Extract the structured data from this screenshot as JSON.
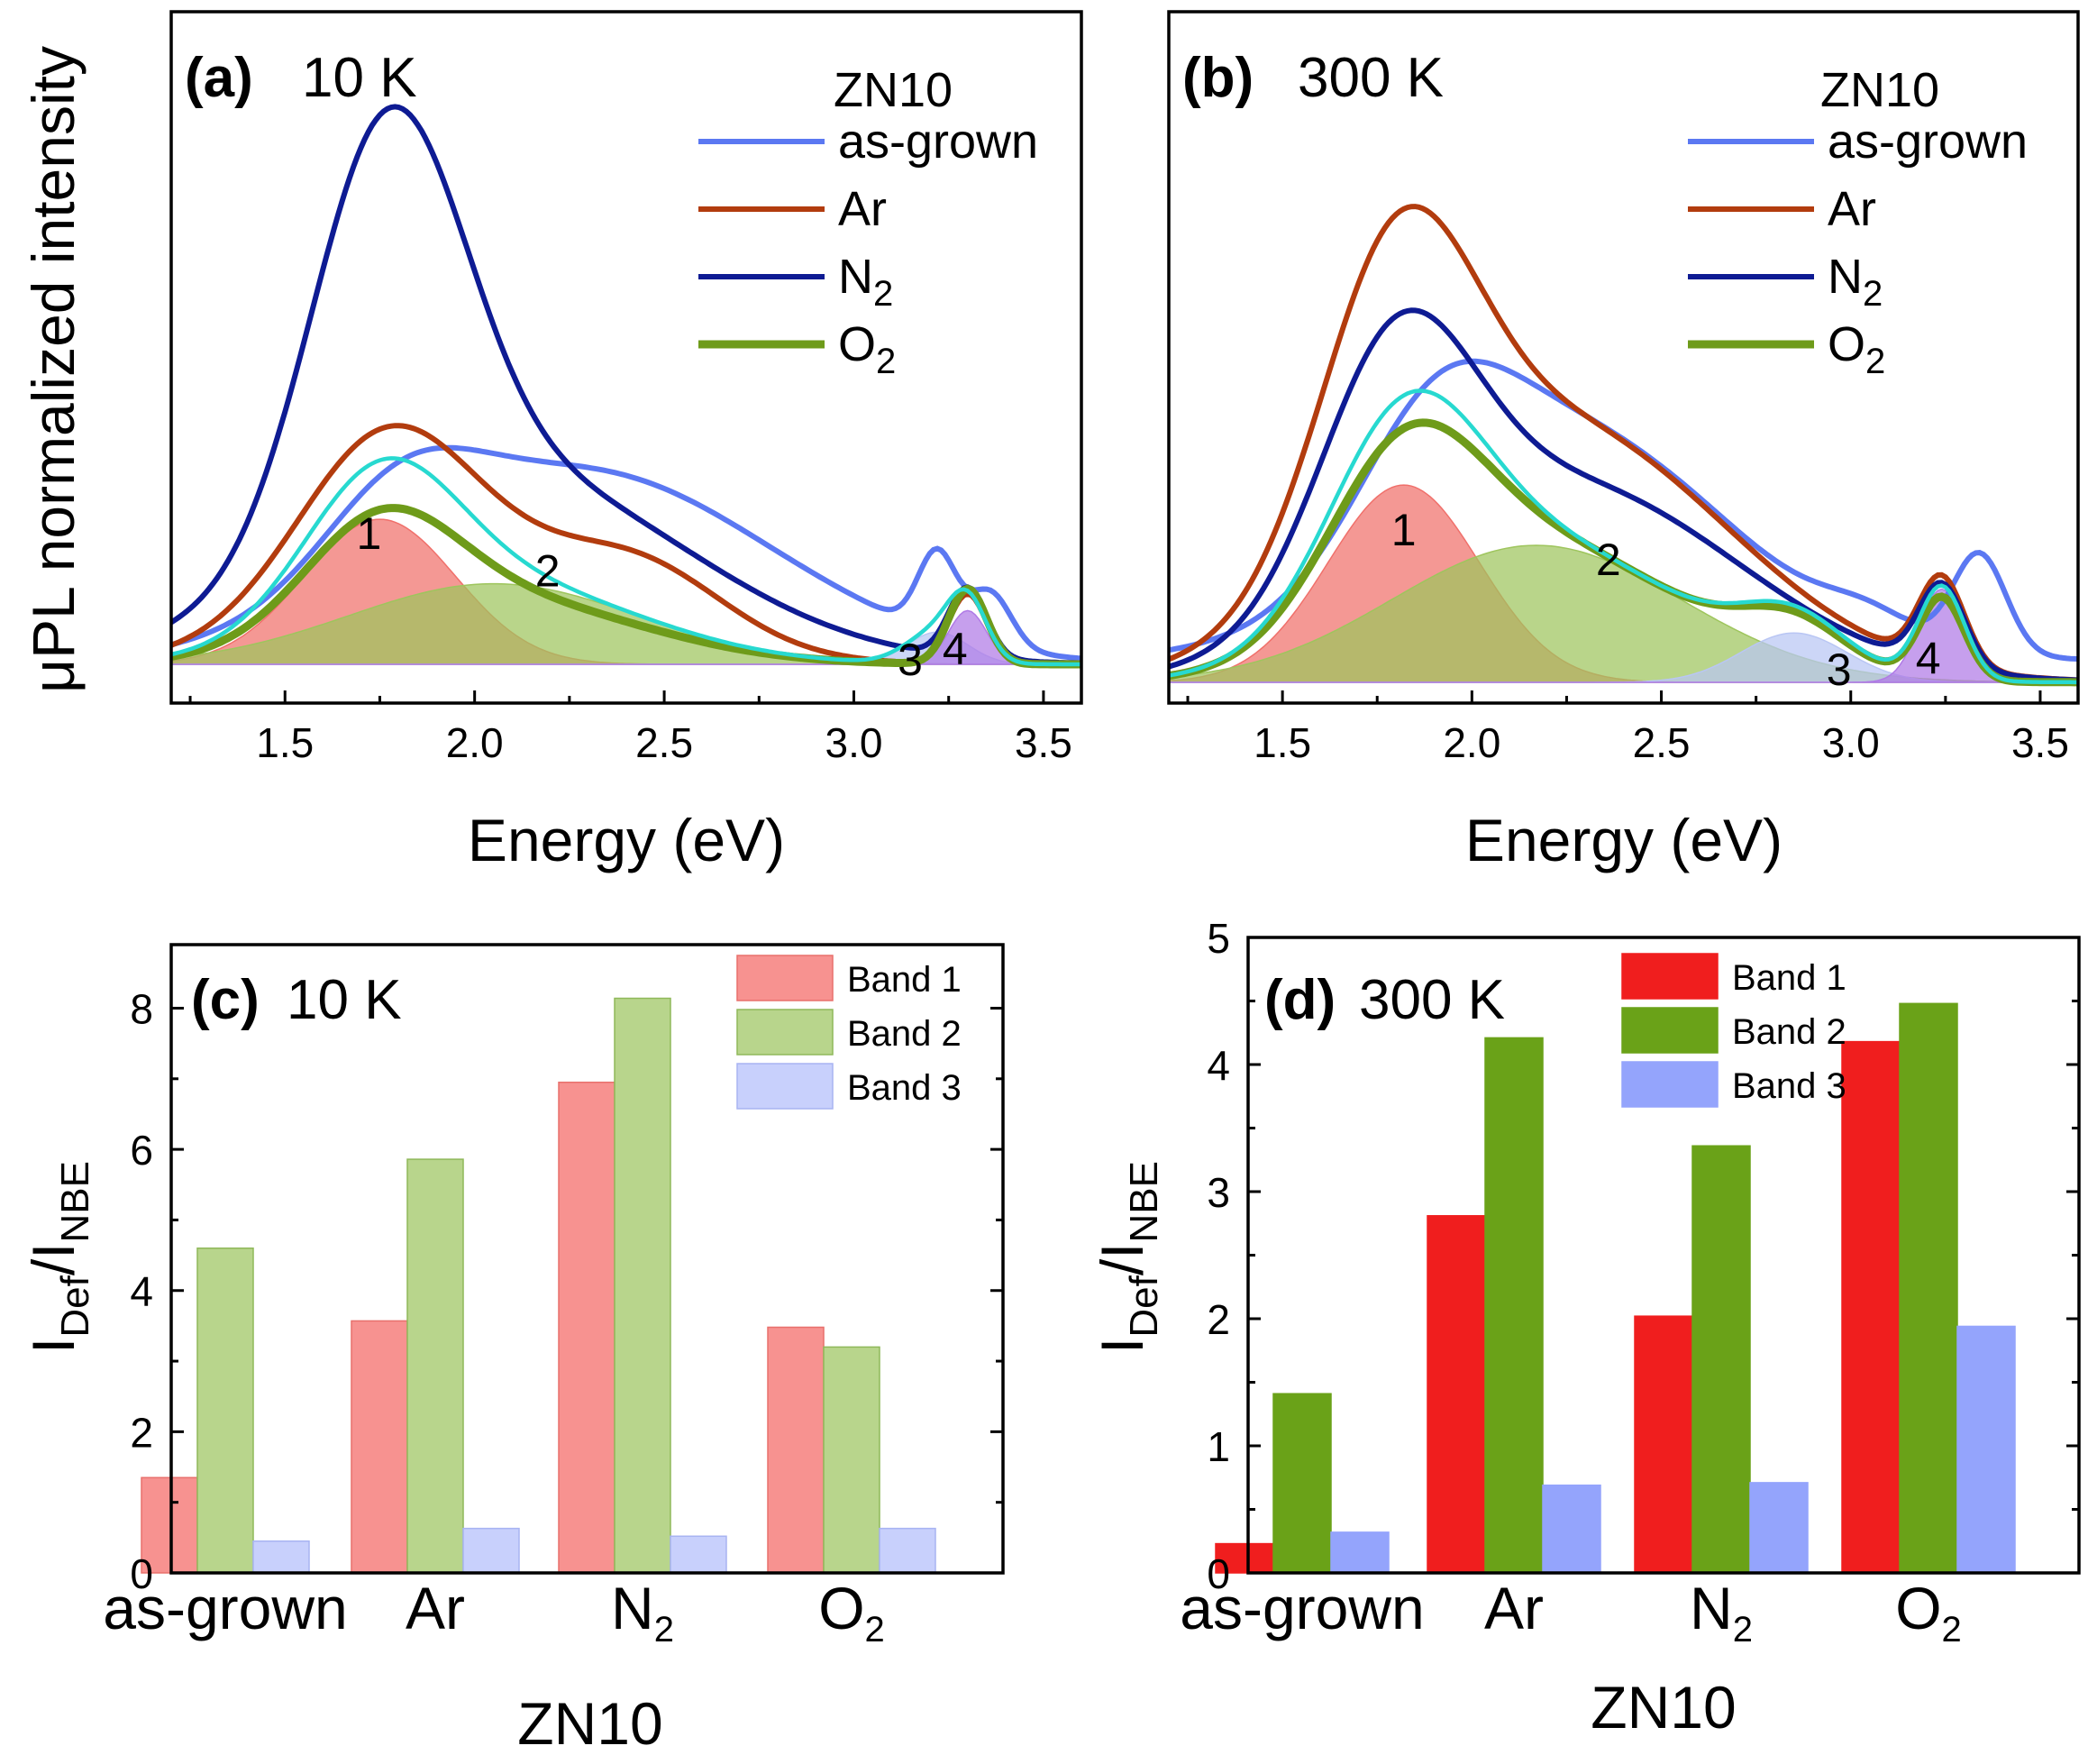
{
  "figure_text": {
    "ylabel_top": "μPL normalized intensity",
    "xlabel_top": "Energy (eV)",
    "ylabel_bottom_main": "I",
    "ylabel_bottom_sub1": "Def",
    "ylabel_bottom_slash": "/I",
    "ylabel_bottom_sub2": "NBE",
    "xlabel_bottom": "ZN10"
  },
  "colors": {
    "as_grown": "#5b78f2",
    "Ar": "#b23c0e",
    "N2": "#0e1b93",
    "O2": "#6e9b1a",
    "fit": "#27d9d0",
    "band1_fill": "#f0706b",
    "band2_fill": "#9ec55d",
    "band3_fill": "#b9c6f4",
    "band4_fill": "#b07ae6",
    "c_band1": "#f79290",
    "c_band2": "#b8d58c",
    "c_band3": "#c8d0fc",
    "d_band1": "#f01e1e",
    "d_band2": "#6aa218",
    "d_band3": "#94a4fc"
  },
  "chart_data": [
    {
      "id": "a",
      "type": "line",
      "panel_label": "(a)",
      "temperature": "10 K",
      "sample": "ZN10",
      "xlabel": "Energy (eV)",
      "ylabel": "μPL normalized intensity",
      "xlim": [
        1.2,
        3.6
      ],
      "ylim": [
        -0.05,
        1.15
      ],
      "xticks": [
        "1.5",
        "2.0",
        "2.5",
        "3.0",
        "3.5"
      ],
      "legend": [
        "as-grown",
        "Ar",
        "N",
        "O"
      ],
      "legend_sub": [
        "",
        "",
        "2",
        "2"
      ],
      "series": [
        {
          "name": "as-grown",
          "peaks": [
            [
              1.8,
              0.2,
              0.15
            ],
            [
              2.28,
              0.5,
              0.36
            ],
            [
              3.36,
              0.055,
              0.1
            ],
            [
              3.22,
              0.05,
              0.15
            ]
          ]
        },
        {
          "name": "Ar",
          "peaks": [
            [
              1.76,
              0.23,
              0.31
            ],
            [
              2.02,
              0.4,
              0.16
            ],
            [
              2.45,
              0.22,
              0.11
            ],
            [
              3.3,
              0.05,
              0.13
            ]
          ]
        },
        {
          "name": "N2",
          "peaks": [
            [
              1.77,
              0.2,
              0.75
            ],
            [
              2.08,
              0.48,
              0.35
            ],
            [
              3.3,
              0.05,
              0.13
            ]
          ]
        },
        {
          "name": "O2",
          "peaks": [
            [
              1.75,
              0.2,
              0.2
            ],
            [
              2.05,
              0.38,
              0.12
            ],
            [
              3.3,
              0.05,
              0.14
            ]
          ]
        }
      ],
      "bands": [
        {
          "label": "1",
          "center": 1.75,
          "width": 0.2,
          "height": 0.27
        },
        {
          "label": "2",
          "center": 2.05,
          "width": 0.38,
          "height": 0.15
        },
        {
          "label": "3",
          "center": 3.22,
          "width": 0.08,
          "height": 0.06
        },
        {
          "label": "4",
          "center": 3.3,
          "width": 0.05,
          "height": 0.1
        }
      ]
    },
    {
      "id": "b",
      "type": "line",
      "panel_label": "(b)",
      "temperature": "300 K",
      "sample": "ZN10",
      "xlabel": "Energy (eV)",
      "xlim": [
        1.2,
        3.6
      ],
      "ylim": [
        -0.05,
        1.15
      ],
      "xticks": [
        "1.5",
        "2.0",
        "2.5",
        "3.0",
        "3.5"
      ],
      "legend": [
        "as-grown",
        "Ar",
        "N",
        "O"
      ],
      "legend_sub": [
        "",
        "",
        "2",
        "2"
      ],
      "series": [
        {
          "name": "as-grown",
          "base": 0.04,
          "peaks": [
            [
              1.9,
              0.2,
              0.22
            ],
            [
              2.25,
              0.42,
              0.42
            ],
            [
              3.34,
              0.07,
              0.18
            ],
            [
              3.05,
              0.12,
              0.04
            ]
          ]
        },
        {
          "name": "Ar",
          "peaks": [
            [
              1.8,
              0.2,
              0.55
            ],
            [
              2.22,
              0.45,
              0.47
            ],
            [
              3.24,
              0.06,
              0.16
            ]
          ]
        },
        {
          "name": "N2",
          "peaks": [
            [
              1.8,
              0.2,
              0.45
            ],
            [
              2.25,
              0.45,
              0.36
            ],
            [
              3.24,
              0.06,
              0.15
            ]
          ]
        },
        {
          "name": "O2",
          "peaks": [
            [
              1.82,
              0.2,
              0.3
            ],
            [
              2.17,
              0.38,
              0.25
            ],
            [
              2.85,
              0.14,
              0.08
            ],
            [
              3.24,
              0.06,
              0.15
            ]
          ]
        }
      ],
      "bands": [
        {
          "label": "1",
          "center": 1.82,
          "width": 0.2,
          "height": 0.36
        },
        {
          "label": "2",
          "center": 2.17,
          "width": 0.38,
          "height": 0.25
        },
        {
          "label": "3",
          "center": 2.85,
          "width": 0.14,
          "height": 0.09
        },
        {
          "label": "4",
          "center": 3.24,
          "width": 0.06,
          "height": 0.17
        }
      ]
    },
    {
      "id": "c",
      "type": "bar",
      "panel_label": "(c)",
      "temperature": "10 K",
      "xlabel": "ZN10",
      "ylabel": "IDef/INBE",
      "ylim": [
        0,
        8.9
      ],
      "yticks": [
        "0",
        "2",
        "4",
        "6",
        "8"
      ],
      "categories": [
        "as-grown",
        "Ar",
        "N",
        "O"
      ],
      "categories_sub": [
        "",
        "",
        "2",
        "2"
      ],
      "series": [
        {
          "name": "Band 1",
          "values": [
            1.35,
            3.57,
            6.95,
            3.48
          ]
        },
        {
          "name": "Band 2",
          "values": [
            4.6,
            5.86,
            8.14,
            3.2
          ]
        },
        {
          "name": "Band 3",
          "values": [
            0.45,
            0.63,
            0.52,
            0.63
          ]
        }
      ]
    },
    {
      "id": "d",
      "type": "bar",
      "panel_label": "(d)",
      "temperature": "300 K",
      "xlabel": "ZN10",
      "ylabel": "IDef/INBE",
      "ylim": [
        0,
        5
      ],
      "yticks": [
        "0",
        "1",
        "2",
        "3",
        "4",
        "5"
      ],
      "categories": [
        "as-grown",
        "Ar",
        "N",
        "O"
      ],
      "categories_sub": [
        "",
        "",
        "2",
        "2"
      ],
      "series": [
        {
          "name": "Band 1",
          "values": [
            0.23,
            2.81,
            2.02,
            4.18
          ]
        },
        {
          "name": "Band 2",
          "values": [
            1.41,
            4.21,
            3.36,
            4.48
          ]
        },
        {
          "name": "Band 3",
          "values": [
            0.32,
            0.69,
            0.71,
            1.94
          ]
        }
      ]
    }
  ]
}
